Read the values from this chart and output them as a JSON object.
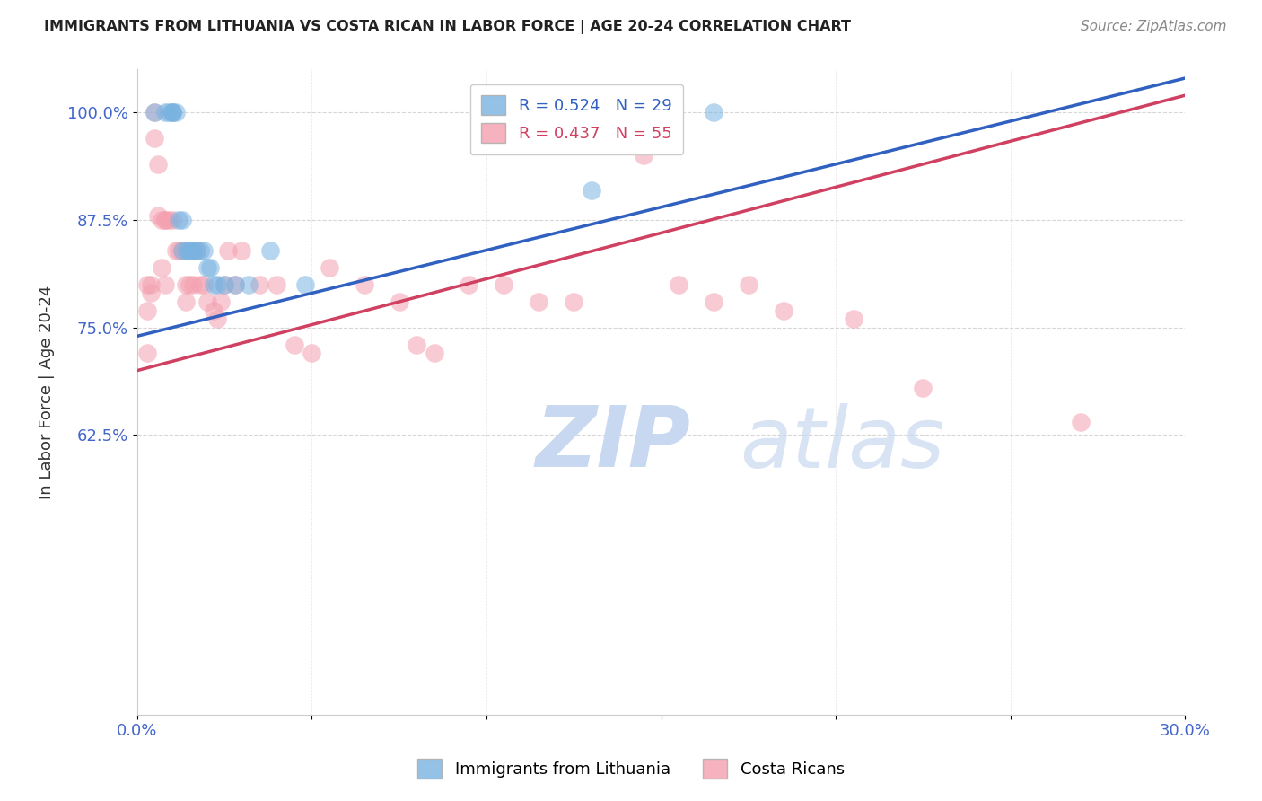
{
  "title": "IMMIGRANTS FROM LITHUANIA VS COSTA RICAN IN LABOR FORCE | AGE 20-24 CORRELATION CHART",
  "source": "Source: ZipAtlas.com",
  "xlabel": "",
  "ylabel": "In Labor Force | Age 20-24",
  "xlim": [
    0.0,
    0.3
  ],
  "ylim": [
    0.3,
    1.05
  ],
  "xticks": [
    0.0,
    0.05,
    0.1,
    0.15,
    0.2,
    0.25,
    0.3
  ],
  "xticklabels": [
    "0.0%",
    "",
    "",
    "",
    "",
    "",
    "30.0%"
  ],
  "yticks": [
    0.625,
    0.75,
    0.875,
    1.0
  ],
  "yticklabels": [
    "62.5%",
    "75.0%",
    "87.5%",
    "100.0%"
  ],
  "grid_color": "#cccccc",
  "background_color": "#ffffff",
  "legend_r1": "R = 0.524",
  "legend_n1": "N = 29",
  "legend_r2": "R = 0.437",
  "legend_n2": "N = 55",
  "blue_color": "#7ab3e0",
  "pink_color": "#f4a0b0",
  "blue_line_color": "#3060c0",
  "pink_line_color": "#d04060",
  "title_color": "#222222",
  "axis_label_color": "#333333",
  "tick_label_color": "#4466cc",
  "watermark_text": "ZIPatlas",
  "watermark_color": "#c8d8f0",
  "blue_trend": [
    0.0,
    0.74,
    0.3,
    1.04
  ],
  "pink_trend": [
    0.0,
    0.7,
    0.3,
    1.02
  ],
  "scatter_blue_x": [
    0.005,
    0.008,
    0.009,
    0.01,
    0.01,
    0.01,
    0.011,
    0.012,
    0.013,
    0.013,
    0.014,
    0.015,
    0.015,
    0.016,
    0.016,
    0.017,
    0.018,
    0.019,
    0.02,
    0.021,
    0.022,
    0.023,
    0.025,
    0.028,
    0.032,
    0.038,
    0.048,
    0.13,
    0.165
  ],
  "scatter_blue_y": [
    1.0,
    1.0,
    1.0,
    1.0,
    1.0,
    1.0,
    1.0,
    0.875,
    0.875,
    0.84,
    0.84,
    0.84,
    0.84,
    0.84,
    0.84,
    0.84,
    0.84,
    0.84,
    0.82,
    0.82,
    0.8,
    0.8,
    0.8,
    0.8,
    0.8,
    0.84,
    0.8,
    0.91,
    1.0
  ],
  "scatter_pink_x": [
    0.003,
    0.003,
    0.003,
    0.004,
    0.004,
    0.005,
    0.005,
    0.006,
    0.006,
    0.007,
    0.007,
    0.008,
    0.008,
    0.008,
    0.009,
    0.01,
    0.011,
    0.012,
    0.013,
    0.014,
    0.014,
    0.015,
    0.016,
    0.017,
    0.018,
    0.019,
    0.02,
    0.022,
    0.023,
    0.024,
    0.025,
    0.026,
    0.028,
    0.03,
    0.035,
    0.04,
    0.045,
    0.05,
    0.055,
    0.065,
    0.075,
    0.08,
    0.085,
    0.095,
    0.105,
    0.115,
    0.125,
    0.145,
    0.155,
    0.165,
    0.175,
    0.185,
    0.205,
    0.225,
    0.27
  ],
  "scatter_pink_y": [
    0.8,
    0.77,
    0.72,
    0.8,
    0.79,
    1.0,
    0.97,
    0.94,
    0.88,
    0.875,
    0.82,
    0.875,
    0.875,
    0.8,
    0.875,
    0.875,
    0.84,
    0.84,
    0.84,
    0.8,
    0.78,
    0.8,
    0.8,
    0.84,
    0.8,
    0.8,
    0.78,
    0.77,
    0.76,
    0.78,
    0.8,
    0.84,
    0.8,
    0.84,
    0.8,
    0.8,
    0.73,
    0.72,
    0.82,
    0.8,
    0.78,
    0.73,
    0.72,
    0.8,
    0.8,
    0.78,
    0.78,
    0.95,
    0.8,
    0.78,
    0.8,
    0.77,
    0.76,
    0.68,
    0.64
  ]
}
